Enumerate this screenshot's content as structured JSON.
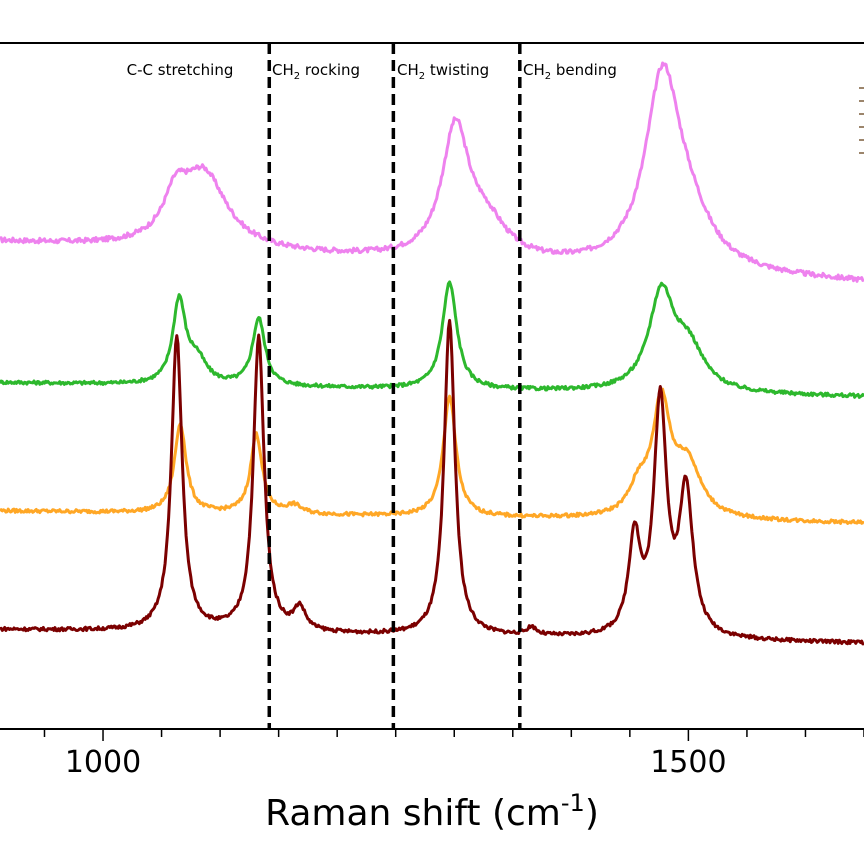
{
  "chart_data": {
    "type": "line",
    "xlabel": "Raman shift (cm",
    "xlabel_sup": "-1",
    "xlabel_end": ")",
    "xlim": [
      912,
      1650
    ],
    "x_ticks": [
      1000,
      1500
    ],
    "grid": false,
    "regions": [
      {
        "label": "C-C stretching",
        "sub": "",
        "label_end": "",
        "from": 912,
        "to": 1142
      },
      {
        "label": "CH",
        "sub": "2",
        "label_end": " rocking",
        "from": 1142,
        "to": 1248
      },
      {
        "label": "CH",
        "sub": "2",
        "label_end": " twisting",
        "from": 1248,
        "to": 1356
      },
      {
        "label": "CH",
        "sub": "2",
        "label_end": " bending",
        "from": 1356,
        "to": 1650
      }
    ],
    "dividers": [
      1142,
      1248,
      1356
    ],
    "series": [
      {
        "color": "#ee82ee",
        "baseline_start": 0.71,
        "baseline_end": 0.65,
        "noise": 0.0035,
        "peaks": [
          [
            1062,
            0.055,
            12
          ],
          [
            1086,
            0.11,
            24
          ],
          [
            1301,
            0.185,
            14
          ],
          [
            1327,
            0.05,
            22
          ],
          [
            1478,
            0.27,
            18
          ],
          [
            1500,
            0.06,
            24
          ]
        ]
      },
      {
        "color": "#2db82d",
        "baseline_start": 0.505,
        "baseline_end": 0.484,
        "noise": 0.0025,
        "peaks": [
          [
            1065,
            0.12,
            6.5
          ],
          [
            1080,
            0.035,
            10
          ],
          [
            1133,
            0.098,
            6.5
          ],
          [
            1296,
            0.155,
            7.5
          ],
          [
            1477,
            0.14,
            13
          ],
          [
            1500,
            0.06,
            16
          ]
        ]
      },
      {
        "color": "#ffa726",
        "baseline_start": 0.318,
        "baseline_end": 0.3,
        "noise": 0.0025,
        "peaks": [
          [
            1066,
            0.13,
            6
          ],
          [
            1131,
            0.115,
            6
          ],
          [
            1163,
            0.012,
            8
          ],
          [
            1296,
            0.175,
            6.5
          ],
          [
            1458,
            0.04,
            10
          ],
          [
            1477,
            0.16,
            9
          ],
          [
            1499,
            0.078,
            14
          ]
        ]
      },
      {
        "color": "#7b0000",
        "baseline_start": 0.145,
        "baseline_end": 0.125,
        "noise": 0.0025,
        "peaks": [
          [
            1063,
            0.43,
            5.5
          ],
          [
            1133,
            0.43,
            5.5
          ],
          [
            1168,
            0.033,
            6
          ],
          [
            1296,
            0.46,
            5.5
          ],
          [
            1366,
            0.012,
            5
          ],
          [
            1454,
            0.14,
            6
          ],
          [
            1476,
            0.34,
            6.5
          ],
          [
            1498,
            0.21,
            7
          ]
        ]
      }
    ]
  }
}
